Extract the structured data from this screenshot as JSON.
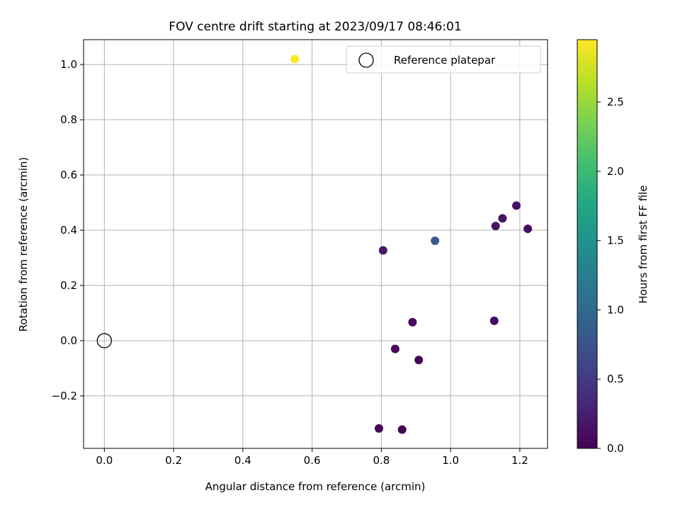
{
  "chart_data": {
    "type": "scatter",
    "title": "FOV centre drift starting at 2023/09/17 08:46:01",
    "xlabel": "Angular distance from reference (arcmin)",
    "ylabel": "Rotation from reference (arcmin)",
    "xlim": [
      -0.06,
      1.28
    ],
    "ylim": [
      -0.39,
      1.09
    ],
    "xticks": [
      0.0,
      0.2,
      0.4,
      0.6,
      0.8,
      1.0,
      1.2
    ],
    "xtick_labels": [
      "0.0",
      "0.2",
      "0.4",
      "0.6",
      "0.8",
      "1.0",
      "1.2"
    ],
    "yticks": [
      -0.2,
      0.0,
      0.2,
      0.4,
      0.6,
      0.8,
      1.0
    ],
    "ytick_labels": [
      "−0.2",
      "0.0",
      "0.2",
      "0.4",
      "0.6",
      "0.8",
      "1.0"
    ],
    "grid": true,
    "colormap": "viridis",
    "colorbar": {
      "label": "Hours from first FF file",
      "range": [
        0.0,
        2.95
      ],
      "ticks": [
        0.0,
        0.5,
        1.0,
        1.5,
        2.0,
        2.5
      ],
      "tick_labels": [
        "0.0",
        "0.5",
        "1.0",
        "1.5",
        "2.0",
        "2.5"
      ]
    },
    "legend": {
      "placement": "upper right",
      "entries": [
        {
          "label": "Reference platepar",
          "marker": "open-circle"
        }
      ]
    },
    "reference_point": {
      "x": 0.0,
      "y": 0.0,
      "marker_color": "#000000"
    },
    "points": [
      {
        "x": 0.55,
        "y": 1.02,
        "hours": 2.95
      },
      {
        "x": 0.955,
        "y": 0.362,
        "hours": 0.85
      },
      {
        "x": 0.805,
        "y": 0.327,
        "hours": 0.2
      },
      {
        "x": 1.13,
        "y": 0.415,
        "hours": 0.15
      },
      {
        "x": 1.15,
        "y": 0.443,
        "hours": 0.15
      },
      {
        "x": 1.19,
        "y": 0.489,
        "hours": 0.12
      },
      {
        "x": 1.223,
        "y": 0.405,
        "hours": 0.1
      },
      {
        "x": 1.126,
        "y": 0.072,
        "hours": 0.1
      },
      {
        "x": 0.89,
        "y": 0.067,
        "hours": 0.08
      },
      {
        "x": 0.84,
        "y": -0.03,
        "hours": 0.06
      },
      {
        "x": 0.908,
        "y": -0.07,
        "hours": 0.05
      },
      {
        "x": 0.793,
        "y": -0.318,
        "hours": 0.03
      },
      {
        "x": 0.86,
        "y": -0.322,
        "hours": 0.02
      }
    ]
  }
}
